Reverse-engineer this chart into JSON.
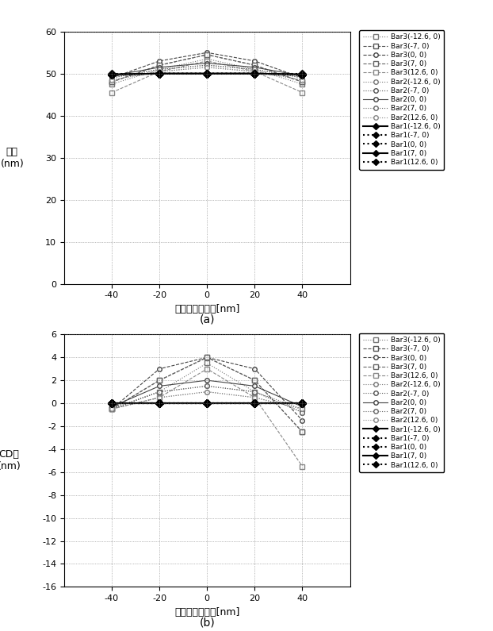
{
  "x": [
    -40,
    -20,
    0,
    20,
    40
  ],
  "title_a": "(a)",
  "title_b": "(b)",
  "ylabel_a": "線幅\n(nm)",
  "ylabel_b": "CD差\n(nm)",
  "xlabel_a": "デフォーカス量[nm]",
  "xlabel_b": "デフォーカス量[nm]",
  "xlim": [
    -60,
    60
  ],
  "ylim_a": [
    0,
    60
  ],
  "ylim_b": [
    -16,
    6
  ],
  "yticks_a": [
    0,
    10,
    20,
    30,
    40,
    50,
    60
  ],
  "yticks_b": [
    -16,
    -14,
    -12,
    -10,
    -8,
    -6,
    -4,
    -2,
    0,
    2,
    4,
    6
  ],
  "xticks": [
    -40,
    -20,
    0,
    20,
    40
  ],
  "legend_labels": [
    "Bar3(-12.6, 0)",
    "Bar3(-7, 0)",
    "Bar3(0, 0)",
    "Bar3(7, 0)",
    "Bar3(12.6, 0)",
    "Bar2(-12.6, 0)",
    "Bar2(-7, 0)",
    "Bar2(0, 0)",
    "Bar2(7, 0)",
    "Bar2(12.6, 0)",
    "Bar1(-12.6, 0)",
    "Bar1(-7, 0)",
    "Bar1(0, 0)",
    "Bar1(7, 0)",
    "Bar1(12.6, 0)"
  ],
  "series_a": {
    "Bar3_-12.6": [
      47.5,
      51.0,
      53.5,
      51.0,
      47.5
    ],
    "Bar3_-7": [
      48.0,
      52.0,
      54.5,
      52.0,
      48.0
    ],
    "Bar3_0": [
      49.0,
      53.0,
      55.0,
      53.0,
      49.0
    ],
    "Bar3_7": [
      48.0,
      52.0,
      54.5,
      52.0,
      48.0
    ],
    "Bar3_12.6": [
      45.5,
      50.5,
      53.0,
      50.5,
      45.5
    ],
    "Bar2_-12.6": [
      48.5,
      50.5,
      51.5,
      50.5,
      48.5
    ],
    "Bar2_-7": [
      49.0,
      51.0,
      52.0,
      51.0,
      49.0
    ],
    "Bar2_0": [
      49.5,
      51.5,
      52.5,
      51.5,
      49.5
    ],
    "Bar2_7": [
      49.0,
      51.0,
      52.0,
      51.0,
      49.0
    ],
    "Bar2_12.6": [
      48.5,
      50.5,
      51.5,
      50.5,
      48.5
    ],
    "Bar1_-12.6": [
      49.8,
      50.0,
      50.0,
      50.0,
      49.8
    ],
    "Bar1_-7": [
      49.8,
      50.0,
      50.0,
      50.0,
      49.8
    ],
    "Bar1_0": [
      50.0,
      50.0,
      50.0,
      50.0,
      50.0
    ],
    "Bar1_7": [
      49.8,
      50.0,
      50.0,
      50.0,
      49.8
    ],
    "Bar1_12.6": [
      49.8,
      50.0,
      50.0,
      50.0,
      49.8
    ]
  },
  "series_b": {
    "Bar3_-12.6": [
      -0.5,
      1.0,
      3.5,
      1.0,
      -0.5
    ],
    "Bar3_-7": [
      -0.5,
      2.0,
      4.0,
      2.0,
      -2.5
    ],
    "Bar3_0": [
      -0.5,
      3.0,
      4.0,
      3.0,
      -1.5
    ],
    "Bar3_7": [
      -0.5,
      2.0,
      4.0,
      2.0,
      -2.5
    ],
    "Bar3_12.6": [
      -0.5,
      0.5,
      3.0,
      0.5,
      -5.5
    ],
    "Bar2_-12.6": [
      -0.5,
      0.5,
      1.0,
      0.5,
      -0.5
    ],
    "Bar2_-7": [
      -0.5,
      1.0,
      1.5,
      1.0,
      -0.8
    ],
    "Bar2_0": [
      -0.3,
      1.5,
      2.0,
      1.5,
      -0.3
    ],
    "Bar2_7": [
      -0.5,
      1.0,
      1.5,
      1.0,
      -0.8
    ],
    "Bar2_12.6": [
      -0.5,
      0.5,
      1.0,
      0.5,
      -0.5
    ],
    "Bar1_-12.6": [
      0.0,
      0.0,
      0.0,
      0.0,
      0.0
    ],
    "Bar1_-7": [
      0.0,
      0.0,
      0.0,
      0.0,
      0.0
    ],
    "Bar1_0": [
      0.0,
      0.0,
      0.0,
      0.0,
      0.0
    ],
    "Bar1_7": [
      0.0,
      0.0,
      0.0,
      0.0,
      0.0
    ],
    "Bar1_12.6": [
      0.0,
      0.0,
      0.0,
      0.0,
      0.0
    ]
  },
  "series_keys": [
    "Bar3_-12.6",
    "Bar3_-7",
    "Bar3_0",
    "Bar3_7",
    "Bar3_12.6",
    "Bar2_-12.6",
    "Bar2_-7",
    "Bar2_0",
    "Bar2_7",
    "Bar2_12.6",
    "Bar1_-12.6",
    "Bar1_-7",
    "Bar1_0",
    "Bar1_7",
    "Bar1_12.6"
  ],
  "line_styles": [
    "dotted",
    "dashed",
    "dashed",
    "dashed",
    "dashed",
    "dotted",
    "dotted",
    "solid",
    "dotted",
    "dotted",
    "solid",
    "dotted",
    "dotted",
    "solid",
    "dotted"
  ],
  "markers": [
    "s",
    "s",
    "o",
    "s",
    "s",
    "o",
    "o",
    "o",
    "o",
    "o",
    "D",
    "D",
    "D",
    "D",
    "D"
  ],
  "line_colors": [
    "#777777",
    "#555555",
    "#444444",
    "#666666",
    "#888888",
    "#777777",
    "#555555",
    "#444444",
    "#666666",
    "#888888",
    "#000000",
    "#000000",
    "#000000",
    "#000000",
    "#000000"
  ],
  "filled": [
    false,
    false,
    false,
    false,
    false,
    false,
    false,
    false,
    false,
    false,
    true,
    true,
    true,
    true,
    true
  ],
  "linewidths": [
    0.8,
    0.8,
    0.8,
    0.8,
    0.8,
    0.8,
    0.8,
    0.8,
    0.8,
    0.8,
    1.5,
    1.5,
    1.5,
    1.5,
    1.5
  ]
}
